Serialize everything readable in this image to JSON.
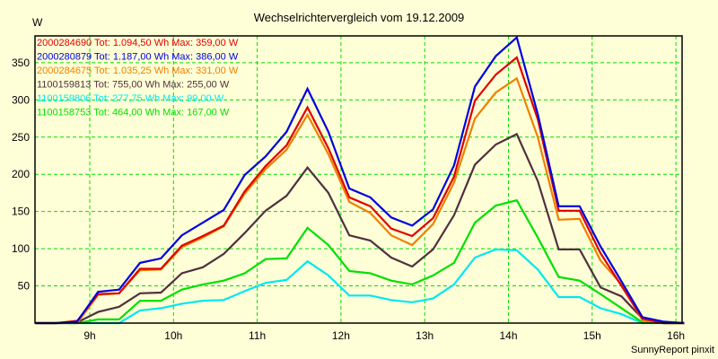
{
  "chart_data": {
    "type": "line",
    "title": "Wechselrichtervergleich vom 19.12.2009",
    "ylabel": "W",
    "xlabel": "",
    "ylim": [
      0,
      386
    ],
    "xlim": [
      8.35,
      16.1
    ],
    "yticks": [
      50,
      100,
      150,
      200,
      250,
      300,
      350
    ],
    "xticks": [
      {
        "value": 9,
        "label": "9h"
      },
      {
        "value": 10,
        "label": "10h"
      },
      {
        "value": 11,
        "label": "11h"
      },
      {
        "value": 12,
        "label": "12h"
      },
      {
        "value": 13,
        "label": "13h"
      },
      {
        "value": 14,
        "label": "14h"
      },
      {
        "value": 15,
        "label": "15h"
      },
      {
        "value": 16,
        "label": "16h"
      }
    ],
    "grid": true,
    "legend_position": "top-left",
    "x": [
      8.35,
      8.6,
      8.85,
      9.1,
      9.35,
      9.6,
      9.85,
      10.1,
      10.35,
      10.6,
      10.85,
      11.1,
      11.35,
      11.6,
      11.85,
      12.1,
      12.35,
      12.6,
      12.85,
      13.1,
      13.35,
      13.6,
      13.85,
      14.1,
      14.35,
      14.6,
      14.85,
      15.1,
      15.35,
      15.6,
      15.85,
      16.1
    ],
    "series": [
      {
        "name": "2000284690",
        "legend": "2000284690 Tot: 1.094,50 Wh Max: 359,00 W",
        "color": "#E00000",
        "values": [
          0,
          0,
          3,
          39,
          40,
          73,
          73,
          104,
          117,
          131,
          177,
          211,
          239,
          290,
          235,
          169,
          157,
          127,
          117,
          141,
          197,
          299,
          334,
          357,
          274,
          151,
          151,
          94,
          50,
          6,
          0,
          0
        ]
      },
      {
        "name": "2000280879",
        "legend": "2000280879 Tot: 1.187,00 Wh Max: 386,00 W",
        "color": "#0000E0",
        "values": [
          0,
          0,
          2,
          42,
          45,
          81,
          87,
          118,
          135,
          152,
          199,
          224,
          257,
          315,
          257,
          181,
          169,
          142,
          131,
          153,
          212,
          318,
          359,
          384,
          281,
          157,
          157,
          103,
          56,
          8,
          2,
          0
        ]
      },
      {
        "name": "2000284675",
        "legend": "2000284675 Tot: 1.035,25 Wh Max: 331,00 W",
        "color": "#F08000",
        "values": [
          0,
          0,
          0,
          38,
          40,
          71,
          72,
          102,
          115,
          130,
          174,
          207,
          233,
          280,
          227,
          163,
          148,
          118,
          105,
          133,
          189,
          275,
          310,
          329,
          250,
          139,
          140,
          84,
          52,
          4,
          0,
          0
        ]
      },
      {
        "name": "1100159813",
        "legend": "1100159813 Tot: 755,00 Wh Max: 255,00 W",
        "color": "#503040",
        "values": [
          0,
          0,
          1,
          15,
          22,
          40,
          41,
          67,
          75,
          93,
          121,
          151,
          171,
          209,
          175,
          118,
          111,
          88,
          76,
          99,
          145,
          213,
          240,
          254,
          191,
          99,
          99,
          48,
          36,
          6,
          0,
          0
        ]
      },
      {
        "name": "1100159806",
        "legend": "1100159806 Tot: 277,75 Wh Max: 99,00 W",
        "color": "#00E8F0",
        "values": [
          0,
          0,
          0,
          0,
          0,
          17,
          20,
          26,
          30,
          31,
          43,
          54,
          58,
          83,
          64,
          37,
          37,
          31,
          28,
          33,
          52,
          88,
          99,
          98,
          72,
          35,
          35,
          20,
          12,
          0,
          0,
          0
        ]
      },
      {
        "name": "1100158753",
        "legend": "1100158753 Tot: 464,00 Wh Max: 167,00 W",
        "color": "#00E000",
        "values": [
          0,
          0,
          0,
          5,
          5,
          30,
          30,
          45,
          52,
          57,
          67,
          86,
          87,
          128,
          105,
          70,
          67,
          57,
          52,
          64,
          81,
          135,
          158,
          165,
          115,
          62,
          57,
          39,
          20,
          1,
          0,
          0
        ]
      }
    ],
    "footer": "SunnyReport pinxit",
    "colors": {
      "background": "#FFFFD7",
      "grid": "#00DD00",
      "axis": "#000000"
    }
  }
}
